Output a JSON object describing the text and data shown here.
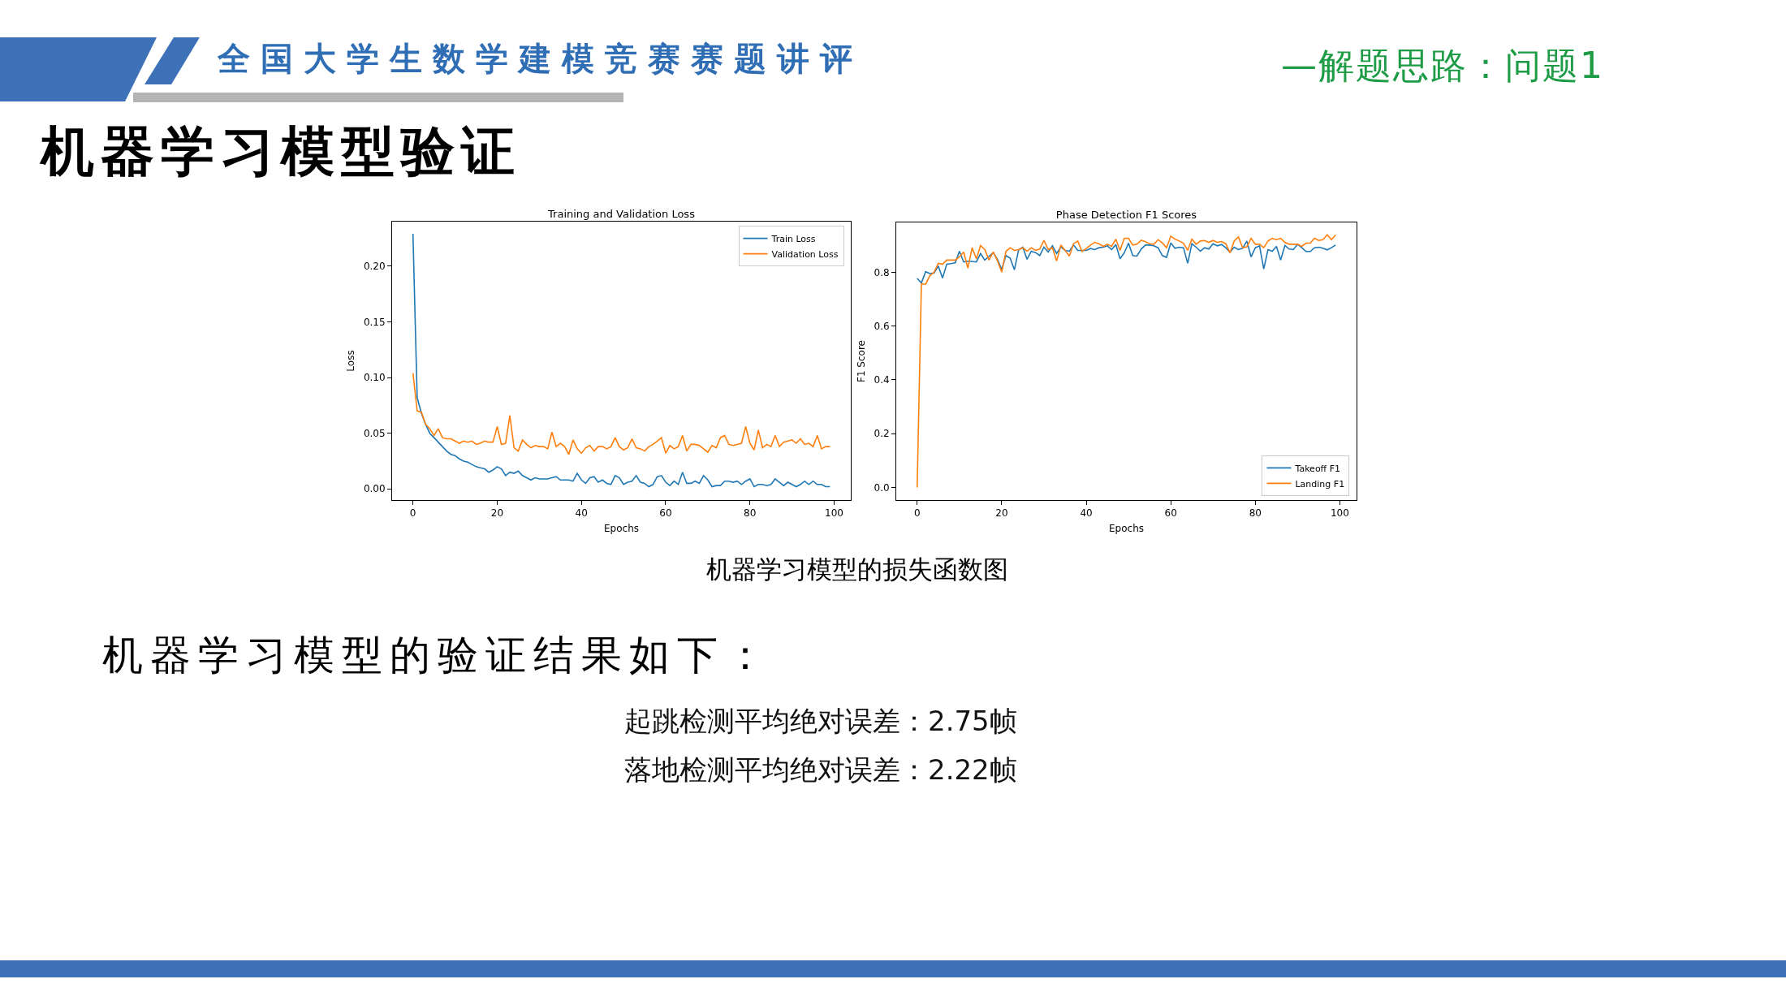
{
  "chart_data": [
    {
      "type": "other",
      "title": "机器学习模型验证",
      "annotations": [
        "全国大学生数学建模竞赛赛题讲评",
        "—解题思路：问题1"
      ]
    },
    {
      "type": "line",
      "title": "Training and Validation Loss",
      "xlabel": "Epochs",
      "ylabel": "Loss",
      "x": [
        0,
        1,
        2,
        3,
        4,
        5,
        6,
        7,
        8,
        9,
        10,
        11,
        12,
        13,
        14,
        15,
        16,
        17,
        18,
        19,
        20,
        21,
        22,
        23,
        24,
        25,
        26,
        27,
        28,
        29,
        30,
        31,
        32,
        33,
        34,
        35,
        36,
        37,
        38,
        39,
        40,
        41,
        42,
        43,
        44,
        45,
        46,
        47,
        48,
        49,
        50,
        51,
        52,
        53,
        54,
        55,
        56,
        57,
        58,
        59,
        60,
        61,
        62,
        63,
        64,
        65,
        66,
        67,
        68,
        69,
        70,
        71,
        72,
        73,
        74,
        75,
        76,
        77,
        78,
        79,
        80,
        81,
        82,
        83,
        84,
        85,
        86,
        87,
        88,
        89,
        90,
        91,
        92,
        93,
        94,
        95,
        96,
        97,
        98,
        99
      ],
      "series": [
        {
          "name": "Train Loss",
          "color": "#1f77b4",
          "values": [
            0.229,
            0.082,
            0.068,
            0.058,
            0.05,
            0.046,
            0.042,
            0.038,
            0.034,
            0.031,
            0.03,
            0.027,
            0.025,
            0.024,
            0.022,
            0.02,
            0.019,
            0.018,
            0.015,
            0.017,
            0.02,
            0.018,
            0.012,
            0.015,
            0.014,
            0.016,
            0.012,
            0.01,
            0.008,
            0.01,
            0.009,
            0.009,
            0.009,
            0.01,
            0.011,
            0.008,
            0.008,
            0.008,
            0.007,
            0.014,
            0.008,
            0.005,
            0.01,
            0.011,
            0.006,
            0.008,
            0.005,
            0.004,
            0.012,
            0.01,
            0.004,
            0.006,
            0.007,
            0.012,
            0.006,
            0.005,
            0.002,
            0.004,
            0.011,
            0.012,
            0.006,
            0.003,
            0.007,
            0.004,
            0.015,
            0.005,
            0.005,
            0.007,
            0.005,
            0.012,
            0.008,
            0.002,
            0.003,
            0.003,
            0.007,
            0.007,
            0.006,
            0.007,
            0.004,
            0.007,
            0.009,
            0.002,
            0.004,
            0.004,
            0.003,
            0.004,
            0.009,
            0.006,
            0.003,
            0.006,
            0.004,
            0.002,
            0.004,
            0.007,
            0.004,
            0.007,
            0.004,
            0.004,
            0.002,
            0.002
          ]
        },
        {
          "name": "Validation Loss",
          "color": "#ff7f0e",
          "values": [
            0.104,
            0.07,
            0.069,
            0.058,
            0.054,
            0.048,
            0.054,
            0.046,
            0.045,
            0.045,
            0.043,
            0.041,
            0.043,
            0.042,
            0.043,
            0.04,
            0.041,
            0.043,
            0.042,
            0.042,
            0.056,
            0.04,
            0.041,
            0.066,
            0.037,
            0.034,
            0.044,
            0.04,
            0.037,
            0.039,
            0.038,
            0.038,
            0.036,
            0.051,
            0.038,
            0.041,
            0.038,
            0.031,
            0.044,
            0.036,
            0.032,
            0.037,
            0.039,
            0.034,
            0.038,
            0.038,
            0.036,
            0.038,
            0.046,
            0.038,
            0.035,
            0.037,
            0.045,
            0.037,
            0.036,
            0.034,
            0.038,
            0.04,
            0.043,
            0.046,
            0.032,
            0.039,
            0.036,
            0.038,
            0.048,
            0.034,
            0.04,
            0.04,
            0.039,
            0.036,
            0.033,
            0.039,
            0.037,
            0.046,
            0.048,
            0.04,
            0.039,
            0.04,
            0.041,
            0.056,
            0.041,
            0.035,
            0.053,
            0.037,
            0.04,
            0.038,
            0.048,
            0.038,
            0.042,
            0.043,
            0.044,
            0.041,
            0.045,
            0.04,
            0.041,
            0.038,
            0.048,
            0.036,
            0.038,
            0.038
          ]
        }
      ],
      "xlim": [
        -4.95,
        103.95
      ],
      "xticks": [
        0,
        20,
        40,
        60,
        80,
        100
      ],
      "ylim": [
        -0.01,
        0.24
      ],
      "yticks": [
        {
          "value": 0,
          "label": "0.00"
        },
        0.05,
        {
          "value": 0.1,
          "label": "0.10"
        },
        0.15,
        {
          "value": 0.2,
          "label": "0.20"
        }
      ],
      "legend": "top right"
    },
    {
      "type": "line",
      "title": "Phase Detection F1 Scores",
      "xlabel": "Epochs",
      "ylabel": "F1 Score",
      "x": [
        0,
        1,
        2,
        3,
        4,
        5,
        6,
        7,
        8,
        9,
        10,
        11,
        12,
        13,
        14,
        15,
        16,
        17,
        18,
        19,
        20,
        21,
        22,
        23,
        24,
        25,
        26,
        27,
        28,
        29,
        30,
        31,
        32,
        33,
        34,
        35,
        36,
        37,
        38,
        39,
        40,
        41,
        42,
        43,
        44,
        45,
        46,
        47,
        48,
        49,
        50,
        51,
        52,
        53,
        54,
        55,
        56,
        57,
        58,
        59,
        60,
        61,
        62,
        63,
        64,
        65,
        66,
        67,
        68,
        69,
        70,
        71,
        72,
        73,
        74,
        75,
        76,
        77,
        78,
        79,
        80,
        81,
        82,
        83,
        84,
        85,
        86,
        87,
        88,
        89,
        90,
        91,
        92,
        93,
        94,
        95,
        96,
        97,
        98,
        99
      ],
      "series": [
        {
          "name": "Takeoff F1",
          "color": "#1f77b4",
          "values": [
            0.777,
            0.76,
            0.802,
            0.795,
            0.797,
            0.823,
            0.778,
            0.83,
            0.832,
            0.835,
            0.878,
            0.838,
            0.84,
            0.84,
            0.838,
            0.869,
            0.845,
            0.859,
            0.873,
            0.847,
            0.81,
            0.862,
            0.852,
            0.809,
            0.883,
            0.893,
            0.848,
            0.878,
            0.873,
            0.862,
            0.893,
            0.875,
            0.898,
            0.87,
            0.894,
            0.881,
            0.878,
            0.901,
            0.881,
            0.881,
            0.881,
            0.888,
            0.884,
            0.891,
            0.893,
            0.898,
            0.884,
            0.903,
            0.85,
            0.872,
            0.908,
            0.862,
            0.86,
            0.886,
            0.901,
            0.901,
            0.898,
            0.891,
            0.862,
            0.855,
            0.909,
            0.889,
            0.893,
            0.891,
            0.833,
            0.906,
            0.893,
            0.878,
            0.891,
            0.886,
            0.906,
            0.898,
            0.903,
            0.891,
            0.875,
            0.893,
            0.884,
            0.889,
            0.916,
            0.857,
            0.891,
            0.898,
            0.812,
            0.884,
            0.878,
            0.896,
            0.845,
            0.899,
            0.886,
            0.884,
            0.904,
            0.891,
            0.877,
            0.877,
            0.891,
            0.893,
            0.889,
            0.883,
            0.891,
            0.901
          ]
        },
        {
          "name": "Landing F1",
          "color": "#ff7f0e",
          "values": [
            0,
            0.757,
            0.755,
            0.787,
            0.8,
            0.833,
            0.83,
            0.845,
            0.845,
            0.845,
            0.857,
            0.875,
            0.815,
            0.891,
            0.85,
            0.899,
            0.884,
            0.845,
            0.875,
            0.843,
            0.8,
            0.877,
            0.891,
            0.881,
            0.884,
            0.891,
            0.878,
            0.891,
            0.881,
            0.886,
            0.918,
            0.884,
            0.891,
            0.842,
            0.901,
            0.881,
            0.86,
            0.906,
            0.916,
            0.877,
            0.888,
            0.901,
            0.911,
            0.906,
            0.896,
            0.904,
            0.896,
            0.923,
            0.881,
            0.926,
            0.926,
            0.901,
            0.904,
            0.919,
            0.913,
            0.906,
            0.904,
            0.921,
            0.909,
            0.891,
            0.934,
            0.923,
            0.916,
            0.908,
            0.881,
            0.923,
            0.904,
            0.916,
            0.918,
            0.911,
            0.918,
            0.911,
            0.914,
            0.906,
            0.872,
            0.916,
            0.931,
            0.891,
            0.894,
            0.926,
            0.904,
            0.904,
            0.891,
            0.916,
            0.926,
            0.921,
            0.926,
            0.911,
            0.904,
            0.904,
            0.904,
            0.896,
            0.908,
            0.908,
            0.926,
            0.918,
            0.921,
            0.939,
            0.921,
            0.938
          ]
        }
      ],
      "xlim": [
        -4.95,
        103.95
      ],
      "xticks": [
        0,
        20,
        40,
        60,
        80,
        100
      ],
      "ylim": [
        -0.047,
        0.985
      ],
      "yticks": [
        {
          "value": 0,
          "label": "0.0"
        },
        0.2,
        0.4,
        0.6,
        0.8
      ],
      "legend": "bottom right"
    },
    {
      "type": "other",
      "annotations": [
        "机器学习模型的损失函数图",
        "机器学习模型的验证结果如下：",
        "起跳检测平均绝对误差：2.75帧",
        "落地检测平均绝对误差：2.22帧"
      ]
    }
  ]
}
